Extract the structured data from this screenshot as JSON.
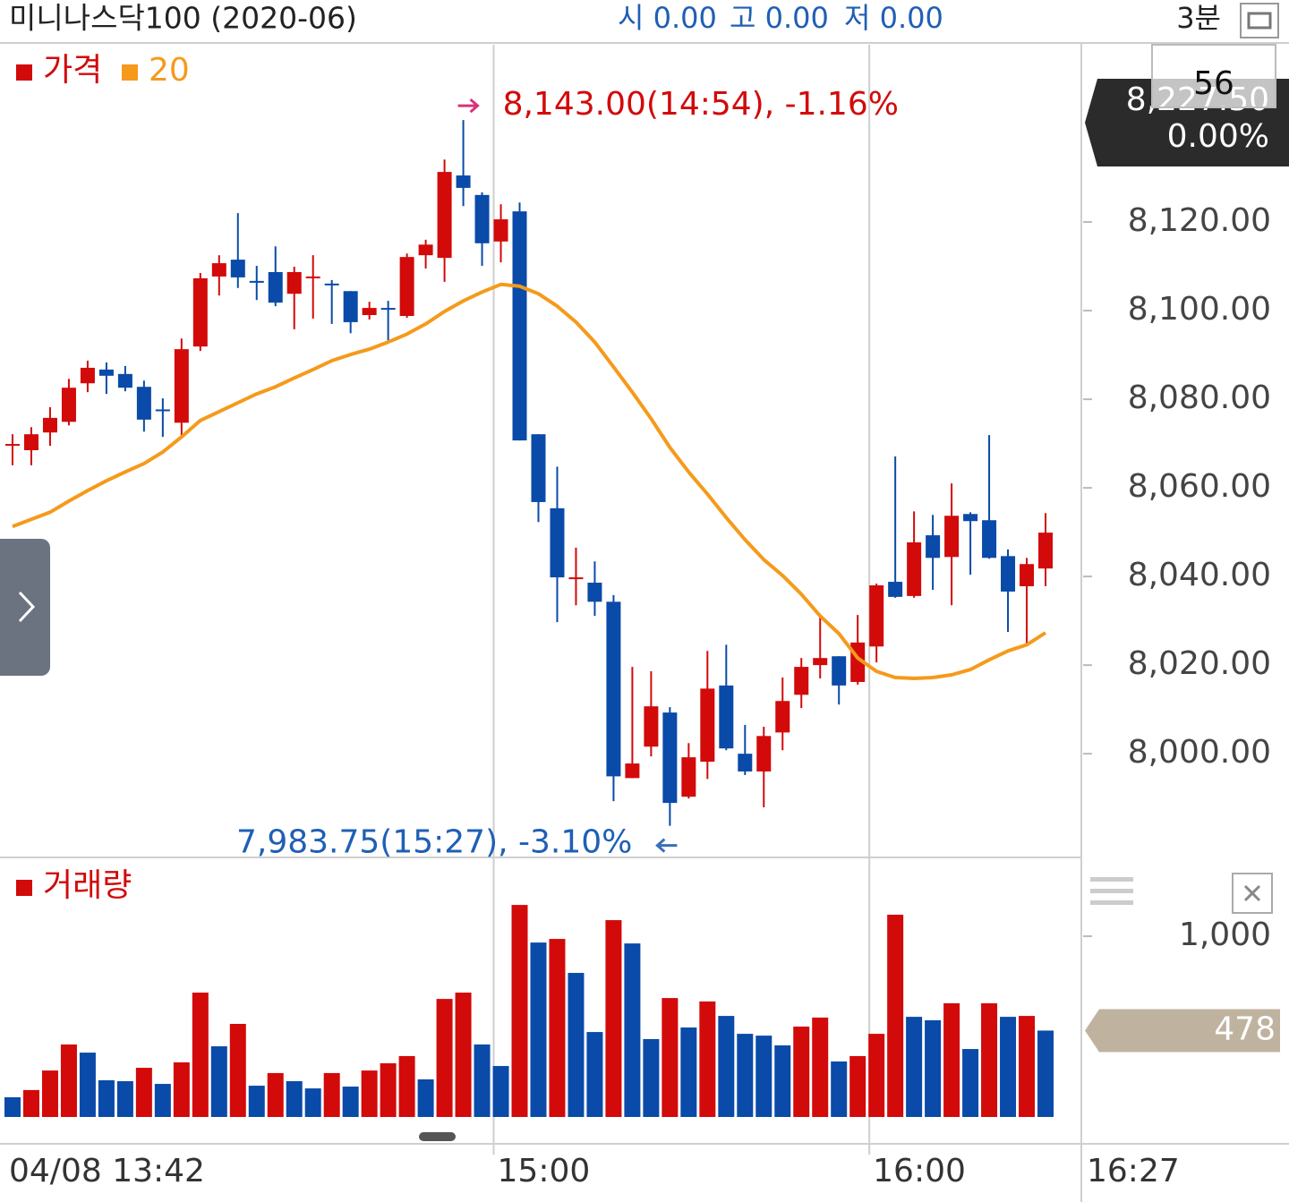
{
  "header": {
    "title": "미니나스닥100 (2020-06)",
    "quote": [
      "시 0.00",
      "고 0.00",
      "저 0.00"
    ],
    "interval": "3분"
  },
  "panel": {
    "visible_count": "56",
    "price_badge": [
      "8,227.50",
      "0.00%"
    ]
  },
  "chart_data": [
    {
      "type": "candlestick",
      "name": "가격",
      "up_color": "#d20a0a",
      "down_color": "#0a4aa8",
      "categories": [
        "04/08 13:42",
        null,
        null,
        null,
        null,
        null,
        null,
        null,
        null,
        null,
        null,
        null,
        null,
        null,
        null,
        null,
        null,
        null,
        null,
        null,
        null,
        null,
        null,
        null,
        null,
        null,
        "15:00",
        null,
        null,
        null,
        null,
        null,
        null,
        null,
        null,
        null,
        null,
        null,
        null,
        null,
        null,
        null,
        null,
        null,
        null,
        null,
        "16:00",
        null,
        null,
        null,
        null,
        null,
        null,
        null,
        null,
        "16:27"
      ],
      "open": [
        8069.5,
        8068.5,
        8072.5,
        8074.9,
        8083.6,
        8086.7,
        8085.7,
        8082.8,
        8077.7,
        8074.7,
        8091.9,
        8107.7,
        8111.5,
        8106.7,
        8108.7,
        8103.8,
        8107.3,
        8106.1,
        8104.4,
        8099.0,
        8100.6,
        8098.8,
        8112.5,
        8111.9,
        8130.5,
        8126.1,
        8115.6,
        8122.4,
        8072.1,
        8055.4,
        8039.4,
        8038.6,
        8034.3,
        7994.5,
        8001.6,
        8009.3,
        7990.3,
        7998.2,
        8015.4,
        8000.0,
        7996.0,
        8004.8,
        8013.3,
        8020.0,
        8022.0,
        8016.2,
        8024.2,
        8038.8,
        8035.6,
        8049.3,
        8044.4,
        8054.1,
        8052.7,
        8044.6,
        8037.8,
        8041.8
      ],
      "high": [
        8072.1,
        8073.7,
        8078.2,
        8084.6,
        8088.7,
        8088.3,
        8087.5,
        8084.2,
        8080.2,
        8093.7,
        8108.5,
        8112.5,
        8122.0,
        8110.1,
        8114.5,
        8109.9,
        8112.5,
        8106.9,
        8104.4,
        8102.0,
        8102.2,
        8112.9,
        8116.0,
        8134.1,
        8143.0,
        8126.7,
        8124.0,
        8124.4,
        8072.1,
        8064.8,
        8046.5,
        8043.4,
        8035.8,
        8019.6,
        8018.6,
        8010.5,
        8002.4,
        8023.2,
        8024.6,
        8006.5,
        8006.1,
        8017.2,
        8021.6,
        8031.1,
        8022.0,
        8031.3,
        8038.4,
        8067.1,
        8054.7,
        8053.9,
        8061.0,
        8054.5,
        8071.9,
        8046.1,
        8044.2,
        8054.3
      ],
      "low": [
        8065.1,
        8065.1,
        8069.5,
        8074.1,
        8081.6,
        8081.2,
        8081.8,
        8072.7,
        8071.5,
        8071.5,
        8090.9,
        8103.4,
        8105.1,
        8102.4,
        8101.0,
        8095.8,
        8098.2,
        8097.0,
        8094.9,
        8098.0,
        8092.9,
        8098.4,
        8109.5,
        8106.5,
        8123.6,
        8110.1,
        8110.9,
        8070.7,
        8052.3,
        8029.7,
        8033.5,
        8031.1,
        7989.3,
        7994.5,
        7999.4,
        7983.75,
        7989.9,
        7994.3,
        8000.8,
        7995.2,
        7987.9,
        8000.8,
        8010.3,
        8017.0,
        8011.1,
        8015.6,
        8020.6,
        8035.2,
        8035.2,
        8037.0,
        8033.5,
        8040.4,
        8044.0,
        8027.5,
        8024.6,
        8037.8
      ],
      "close": [
        8069.9,
        8072.1,
        8075.8,
        8082.6,
        8087.1,
        8085.3,
        8082.6,
        8075.4,
        8077.4,
        8091.3,
        8107.3,
        8110.7,
        8107.5,
        8106.3,
        8101.8,
        8108.7,
        8107.7,
        8105.7,
        8097.4,
        8100.6,
        8100.2,
        8112.1,
        8114.9,
        8131.3,
        8127.7,
        8115.2,
        8120.6,
        8070.7,
        8056.8,
        8039.8,
        8039.8,
        8034.3,
        7994.9,
        7997.8,
        8010.7,
        7988.9,
        7999.2,
        8014.7,
        8001.2,
        7996.0,
        8004.0,
        8011.9,
        8019.6,
        8021.6,
        8015.4,
        8025.1,
        8038.0,
        8035.4,
        8047.7,
        8044.2,
        8053.7,
        8052.5,
        8044.2,
        8036.6,
        8042.8,
        8049.9
      ],
      "series": [
        {
          "name": "20",
          "color": "#f59a1b",
          "values": [
            8051.3,
            8052.9,
            8054.5,
            8057.0,
            8059.4,
            8061.6,
            8063.6,
            8065.5,
            8068.1,
            8071.5,
            8075.2,
            8077.2,
            8079.2,
            8081.2,
            8082.8,
            8084.8,
            8086.7,
            8088.7,
            8090.1,
            8091.3,
            8092.9,
            8094.7,
            8097.0,
            8099.8,
            8102.2,
            8104.2,
            8105.9,
            8105.5,
            8103.8,
            8101.0,
            8097.4,
            8092.9,
            8087.3,
            8081.6,
            8075.6,
            8069.1,
            8063.6,
            8058.6,
            8053.3,
            8048.3,
            8043.8,
            8040.2,
            8036.0,
            8031.1,
            8027.1,
            8021.6,
            8018.6,
            8017.2,
            8017.0,
            8017.2,
            8017.8,
            8019.0,
            8021.2,
            8023.2,
            8024.6,
            8027.3
          ]
        }
      ],
      "annotations": [
        "8,143.00(14:54), -1.16%",
        "7,983.75(15:27), -3.10%"
      ],
      "ylim": [
        7976.6,
        8160
      ],
      "yticks": [
        {
          "value": 8000,
          "label": "8,000.00"
        },
        {
          "value": 8020,
          "label": "8,020.00"
        },
        {
          "value": 8040,
          "label": "8,040.00"
        },
        {
          "value": 8060,
          "label": "8,060.00"
        },
        {
          "value": 8080,
          "label": "8,080.00"
        },
        {
          "value": 8100,
          "label": "8,100.00"
        },
        {
          "value": 8120,
          "label": "8,120.00"
        }
      ]
    },
    {
      "type": "bar",
      "name": "거래량",
      "up_color": "#d20a0a",
      "down_color": "#0a4aa8",
      "values": [
        109,
        149,
        257,
        401,
        356,
        203,
        198,
        272,
        183,
        302,
        688,
        391,
        515,
        173,
        243,
        198,
        158,
        243,
        168,
        257,
        297,
        337,
        208,
        653,
        688,
        401,
        282,
        1173,
        965,
        985,
        797,
        470,
        1089,
        960,
        431,
        658,
        495,
        639,
        559,
        460,
        450,
        396,
        500,
        550,
        307,
        337,
        460,
        1119,
        554,
        535,
        629,
        376,
        629,
        554,
        559,
        478
      ],
      "ylim": [
        0,
        1426
      ],
      "yticks": [
        {
          "value": 1000,
          "label": "1,000"
        }
      ]
    }
  ]
}
